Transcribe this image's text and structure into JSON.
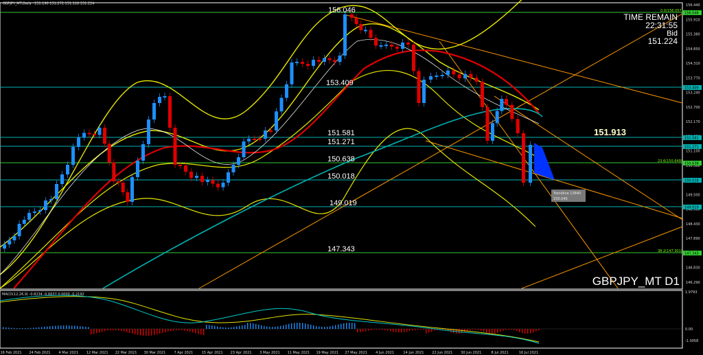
{
  "header": {
    "symbol_info": "GBPJPY_MT,Daily",
    "ohlc": "151.190 151.272 151.118 151.224"
  },
  "overlay": {
    "time_remain_label": "TIME REMAIN",
    "time_remain_value": "22:31:55",
    "bid_label": "Bid",
    "bid_value": "151.224",
    "symbol_timeframe": "GBPJPY_MT D1",
    "highlight_price": "151.913"
  },
  "level_labels": {
    "l156046": "156.046",
    "l153409": "153.409",
    "l151581": "151.581",
    "l151271": "151.271",
    "l150638": "150.638",
    "l150018": "150.018",
    "l149019": "149.019",
    "l147343": "147.343"
  },
  "price_axis": {
    "ticks": [
      "156.440",
      "155.910",
      "155.380",
      "154.850",
      "154.310",
      "153.770",
      "153.240",
      "152.700",
      "152.170",
      "151.630",
      "151.100",
      "150.560",
      "150.020",
      "149.500",
      "148.960",
      "148.430",
      "147.890",
      "147.350",
      "146.830",
      "146.290"
    ],
    "tags": {
      "t156046": "156.046",
      "t153409": "153.409",
      "t151581": "151.581",
      "t151271": "151.271",
      "t150638": "150.638",
      "t150018": "150.018",
      "t149019": "149.019",
      "t147343": "147.343"
    }
  },
  "date_axis": {
    "labels": [
      "16 Feb 2021",
      "24 Feb 2021",
      "4 Mar 2021",
      "12 Mar 2021",
      "22 Mar 2021",
      "30 Mar 2021",
      "7 Apr 2021",
      "15 Apr 2021",
      "23 Apr 2021",
      "3 May 2021",
      "11 May 2021",
      "19 May 2021",
      "27 May 2021",
      "4 Jun 2021",
      "14 Jun 2021",
      "22 Jun 2021",
      "30 Jun 2021",
      "8 Jul 2021",
      "16 Jul 2021"
    ]
  },
  "fibo_labels": {
    "f0": "0.0(156.057)",
    "f236": "23.6(150.649)",
    "f382": "38.2(147.301)"
  },
  "trendline_tooltip": {
    "line1": "Trendline 13840",
    "line2": "150.040"
  },
  "macd": {
    "label": "MACD(12,26,9) -0.8234 -0.6637 0.0000 -0.2192",
    "axis_top": "1.9793",
    "axis_zero": "0.00",
    "axis_bottom": "-1.0058"
  },
  "colors": {
    "bull": "#1e8fff",
    "bear": "#e00000",
    "level_line": "#00b3b3",
    "green_line": "#33cc33",
    "bands": "#e6e600",
    "trend": "#ff9900"
  }
}
